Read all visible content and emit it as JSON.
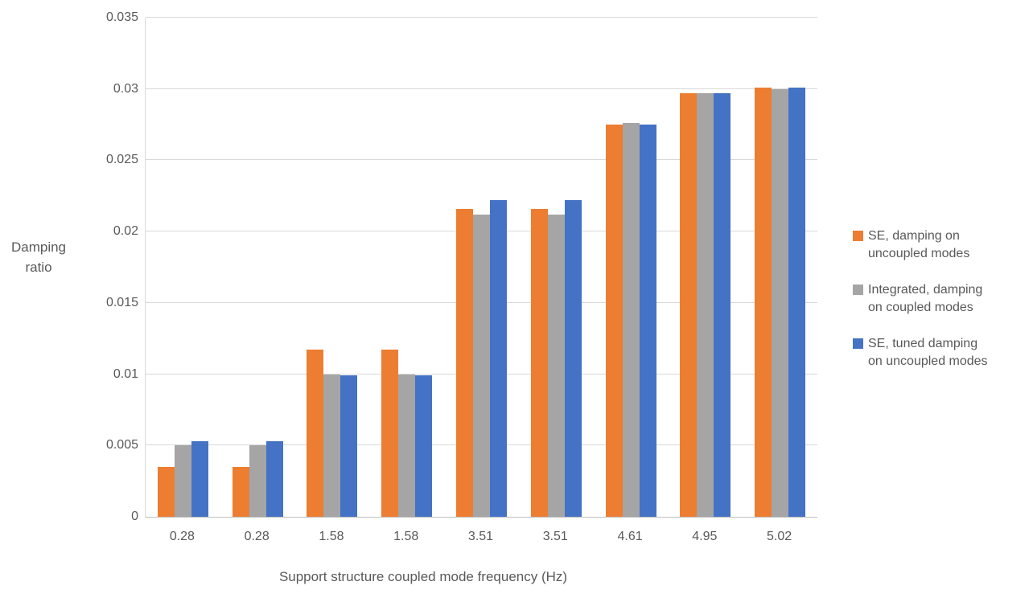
{
  "chart_data": {
    "type": "bar",
    "title": "",
    "xlabel": "Support structure coupled mode frequency (Hz)",
    "ylabel": "Damping ratio",
    "ylabel_lines": [
      "Damping",
      "ratio"
    ],
    "categories": [
      "0.28",
      "0.28",
      "1.58",
      "1.58",
      "3.51",
      "3.51",
      "4.61",
      "4.95",
      "5.02"
    ],
    "series": [
      {
        "name": "SE, damping on uncoupled modes",
        "label_lines": [
          "SE, damping on",
          "uncoupled modes"
        ],
        "color": "#ED7D31",
        "values": [
          0.0035,
          0.0035,
          0.0117,
          0.0117,
          0.0216,
          0.0216,
          0.0275,
          0.0297,
          0.0301
        ]
      },
      {
        "name": "Integrated, damping on coupled modes",
        "label_lines": [
          "Integrated, damping",
          "on coupled modes"
        ],
        "color": "#A5A5A5",
        "values": [
          0.005,
          0.005,
          0.01,
          0.01,
          0.0212,
          0.0212,
          0.0276,
          0.0297,
          0.03
        ]
      },
      {
        "name": "SE, tuned damping on uncoupled modes",
        "label_lines": [
          "SE, tuned damping",
          "on uncoupled modes"
        ],
        "color": "#4472C4",
        "values": [
          0.0053,
          0.0053,
          0.0099,
          0.0099,
          0.0222,
          0.0222,
          0.0275,
          0.0297,
          0.0301
        ]
      }
    ],
    "ylim": [
      0,
      0.035
    ],
    "y_ticks": [
      {
        "label": "0",
        "value": 0
      },
      {
        "label": "0.005",
        "value": 0.005
      },
      {
        "label": "0.01",
        "value": 0.01
      },
      {
        "label": "0.015",
        "value": 0.015
      },
      {
        "label": "0.02",
        "value": 0.02
      },
      {
        "label": "0.025",
        "value": 0.025
      },
      {
        "label": "0.03",
        "value": 0.03
      },
      {
        "label": "0.035",
        "value": 0.035
      }
    ],
    "grid": true,
    "legend_position": "right"
  },
  "colors": {
    "background": "#FFFFFF",
    "text": "#595959",
    "gridline": "#D9D9D9",
    "axis_line": "#BFBFBF",
    "series_orange": "#ED7D31",
    "series_gray": "#A5A5A5",
    "series_blue": "#4472C4"
  }
}
